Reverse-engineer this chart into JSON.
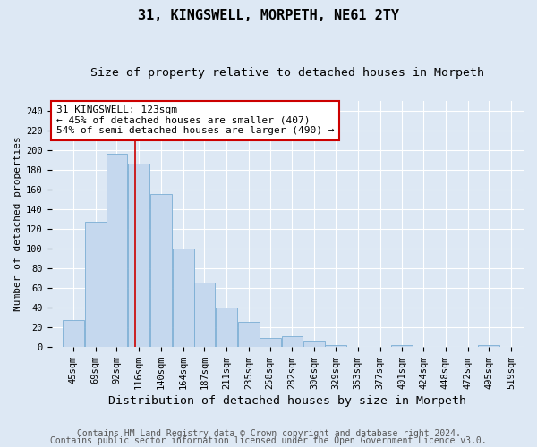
{
  "title1": "31, KINGSWELL, MORPETH, NE61 2TY",
  "title2": "Size of property relative to detached houses in Morpeth",
  "xlabel": "Distribution of detached houses by size in Morpeth",
  "ylabel": "Number of detached properties",
  "footer1": "Contains HM Land Registry data © Crown copyright and database right 2024.",
  "footer2": "Contains public sector information licensed under the Open Government Licence v3.0.",
  "annotation_line1": "31 KINGSWELL: 123sqm",
  "annotation_line2": "← 45% of detached houses are smaller (407)",
  "annotation_line3": "54% of semi-detached houses are larger (490) →",
  "categories": [
    "45sqm",
    "69sqm",
    "92sqm",
    "116sqm",
    "140sqm",
    "164sqm",
    "187sqm",
    "211sqm",
    "235sqm",
    "258sqm",
    "282sqm",
    "306sqm",
    "329sqm",
    "353sqm",
    "377sqm",
    "401sqm",
    "424sqm",
    "448sqm",
    "472sqm",
    "495sqm",
    "519sqm"
  ],
  "category_starts": [
    45,
    69,
    92,
    116,
    140,
    164,
    187,
    211,
    235,
    258,
    282,
    306,
    329,
    353,
    377,
    401,
    424,
    448,
    472,
    495,
    519
  ],
  "values": [
    27,
    127,
    196,
    186,
    155,
    100,
    65,
    40,
    25,
    9,
    11,
    6,
    2,
    0,
    0,
    2,
    0,
    0,
    0,
    2,
    0
  ],
  "bar_color": "#c5d8ee",
  "bar_edge_color": "#7aadd4",
  "vline_color": "#cc0000",
  "vline_x": 123,
  "annotation_box_color": "#ffffff",
  "annotation_box_edge": "#cc0000",
  "ylim": [
    0,
    250
  ],
  "yticks": [
    0,
    20,
    40,
    60,
    80,
    100,
    120,
    140,
    160,
    180,
    200,
    220,
    240
  ],
  "xlim_left": 33,
  "xlim_right": 544,
  "background_color": "#dde8f4",
  "plot_background": "#dde8f4",
  "grid_color": "#ffffff",
  "title1_fontsize": 11,
  "title2_fontsize": 9.5,
  "xlabel_fontsize": 9.5,
  "ylabel_fontsize": 8,
  "tick_fontsize": 7.5,
  "footer_fontsize": 7,
  "annotation_fontsize": 8
}
